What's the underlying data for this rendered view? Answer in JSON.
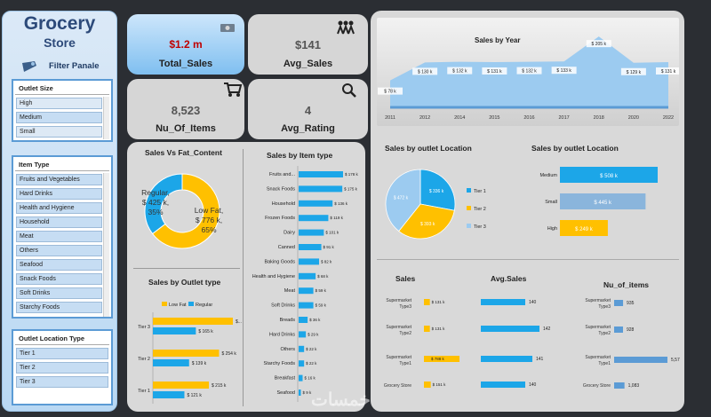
{
  "sidebar": {
    "title_line1": "Grocery",
    "title_line2": "Store",
    "filter_label": "Filter Panale",
    "slicers": [
      {
        "title": "Outlet Size",
        "items": [
          "High",
          "Medium",
          "Small"
        ],
        "selected": [
          1
        ]
      },
      {
        "title": "Item Type",
        "items": [
          "Fruits and Vegetables",
          "Hard Drinks",
          "Health and Hygiene",
          "Household",
          "Meat",
          "Others",
          "Seafood",
          "Snack Foods",
          "Soft Drinks",
          "Starchy Foods"
        ],
        "selected": [
          0,
          1,
          2,
          3,
          4,
          5,
          6,
          7,
          8,
          9
        ]
      },
      {
        "title": "Outlet Location Type",
        "items": [
          "Tier 1",
          "Tier 2",
          "Tier 3"
        ],
        "selected": [
          0,
          1,
          2
        ]
      }
    ]
  },
  "kpis": [
    {
      "value": "$1.2 m",
      "label": "Total_Sales",
      "icon": "money-icon",
      "accent": "#c00000"
    },
    {
      "value": "$141",
      "label": "Avg_Sales",
      "icon": "people-icon",
      "accent": "#555555"
    },
    {
      "value": "8,523",
      "label": "Nu_Of_Items",
      "icon": "cart-icon",
      "accent": "#555555"
    },
    {
      "value": "4",
      "label": "Avg_Rating",
      "icon": "magnifier-icon",
      "accent": "#555555"
    }
  ],
  "colors": {
    "blue": "#1ca6e8",
    "yellow": "#ffc000",
    "light_blue": "#9ccbf0"
  },
  "watermark": "خمسات",
  "chart_data": [
    {
      "type": "area",
      "title": "Sales  by Year",
      "x": [
        "2011",
        "2012",
        "2014",
        "2015",
        "2016",
        "2017",
        "2018",
        "2020",
        "2022"
      ],
      "values": [
        78,
        130,
        132,
        131,
        132,
        133,
        205,
        129,
        131
      ],
      "labels": [
        "$ 78 k",
        "$ 130 k",
        "$ 132 k",
        "$ 131 k",
        "$ 132 k",
        "$ 133 k",
        "$ 205 k",
        "$ 129 k",
        "$ 131 k"
      ],
      "ylim": [
        0,
        260
      ]
    },
    {
      "type": "pie",
      "title": "Sales Vs Fat_Content",
      "slices": [
        {
          "name": "Regular",
          "value": 425,
          "pct": 35,
          "label_lines": [
            "Regular,",
            "$ 425 k,",
            "35%"
          ]
        },
        {
          "name": "Low Fat",
          "value": 776,
          "pct": 65,
          "label_lines": [
            "Low Fat,",
            "$ 776 k,",
            "65%"
          ]
        }
      ]
    },
    {
      "type": "bar",
      "title": "Sales  by Item type",
      "categories": [
        "Fruits and...",
        "Snack Foods",
        "Household",
        "Frozen Foods",
        "Dairy",
        "Canned",
        "Baking Goods",
        "Health and Hygiene",
        "Meat",
        "Soft Drinks",
        "Breads",
        "Hard Drinks",
        "Others",
        "Starchy Foods",
        "Breakfast",
        "Seafood"
      ],
      "values": [
        178,
        175,
        136,
        119,
        101,
        91,
        82,
        68,
        59,
        59,
        36,
        29,
        22,
        22,
        16,
        9
      ],
      "labels": [
        "$ 178 k",
        "$ 175 k",
        "$ 136 k",
        "$ 119 k",
        "$ 101 k",
        "$ 91 k",
        "$ 82 k",
        "$ 68 k",
        "$ 59 k",
        "$ 59 k",
        "$ 36 k",
        "$ 29 k",
        "$ 22 k",
        "$ 22 k",
        "$ 16 k",
        "$ 9 k"
      ]
    },
    {
      "type": "bar",
      "title": "Sales  by Outlet type",
      "legend": [
        "Low Fat",
        "Regular"
      ],
      "categories": [
        "Tier 3",
        "Tier 2",
        "Tier 1"
      ],
      "series": [
        {
          "name": "Low Fat",
          "values": [
            307,
            254,
            215
          ],
          "labels": [
            "$...",
            "$ 254 k",
            "$ 215 k"
          ]
        },
        {
          "name": "Regular",
          "values": [
            165,
            139,
            121
          ],
          "labels": [
            "$ 165 k",
            "$ 139 k",
            "$ 121 k"
          ]
        }
      ]
    },
    {
      "type": "pie",
      "title": "Sales  by outlet Location",
      "legend": [
        "Tier 1",
        "Tier 2",
        "Tier 3"
      ],
      "slices": [
        {
          "name": "Tier 1",
          "value": 336,
          "label": "$ 336 k"
        },
        {
          "name": "Tier 2",
          "value": 393,
          "label": "$ 393 k"
        },
        {
          "name": "Tier 3",
          "value": 472,
          "label": "$ 472 k"
        }
      ]
    },
    {
      "type": "bar",
      "title": "Sales  by outlet Location",
      "categories": [
        "Medium",
        "Small",
        "High"
      ],
      "values": [
        508,
        445,
        249
      ],
      "labels": [
        "$ 508 k",
        "$ 445 k",
        "$ 249 k"
      ]
    },
    {
      "type": "table",
      "title": "Sales",
      "categories": [
        "Supermarket Type3",
        "Supermarket Type2",
        "Supermarket Type1",
        "Grocery Store"
      ],
      "category_lines": [
        [
          "Supermarket",
          "Type3"
        ],
        [
          "Supermarket",
          "Type2"
        ],
        [
          "Supermarket",
          "Type1"
        ],
        [
          "Grocery Store"
        ]
      ],
      "values": [
        131,
        131,
        788,
        151
      ],
      "labels": [
        "$ 131 k",
        "$ 131 k",
        "$ 788 k",
        "$ 151 k"
      ]
    },
    {
      "type": "bar",
      "title": "Avg.Sales",
      "values": [
        140,
        142,
        141,
        140
      ],
      "labels": [
        "140",
        "142",
        "141",
        "140"
      ]
    },
    {
      "type": "bar",
      "title": "Nu_of_items",
      "categories": [
        "Supermarket Type3",
        "Supermarket Type2",
        "Supermarket Type1",
        "Grocery Store"
      ],
      "category_lines": [
        [
          "Supermarket",
          "Type3"
        ],
        [
          "Supermarket",
          "Type2"
        ],
        [
          "Supermarket",
          "Type1"
        ],
        [
          "Grocery Store"
        ]
      ],
      "values": [
        935,
        928,
        5577,
        1083
      ],
      "labels": [
        "935",
        "928",
        "5,577",
        "1,083"
      ]
    }
  ]
}
